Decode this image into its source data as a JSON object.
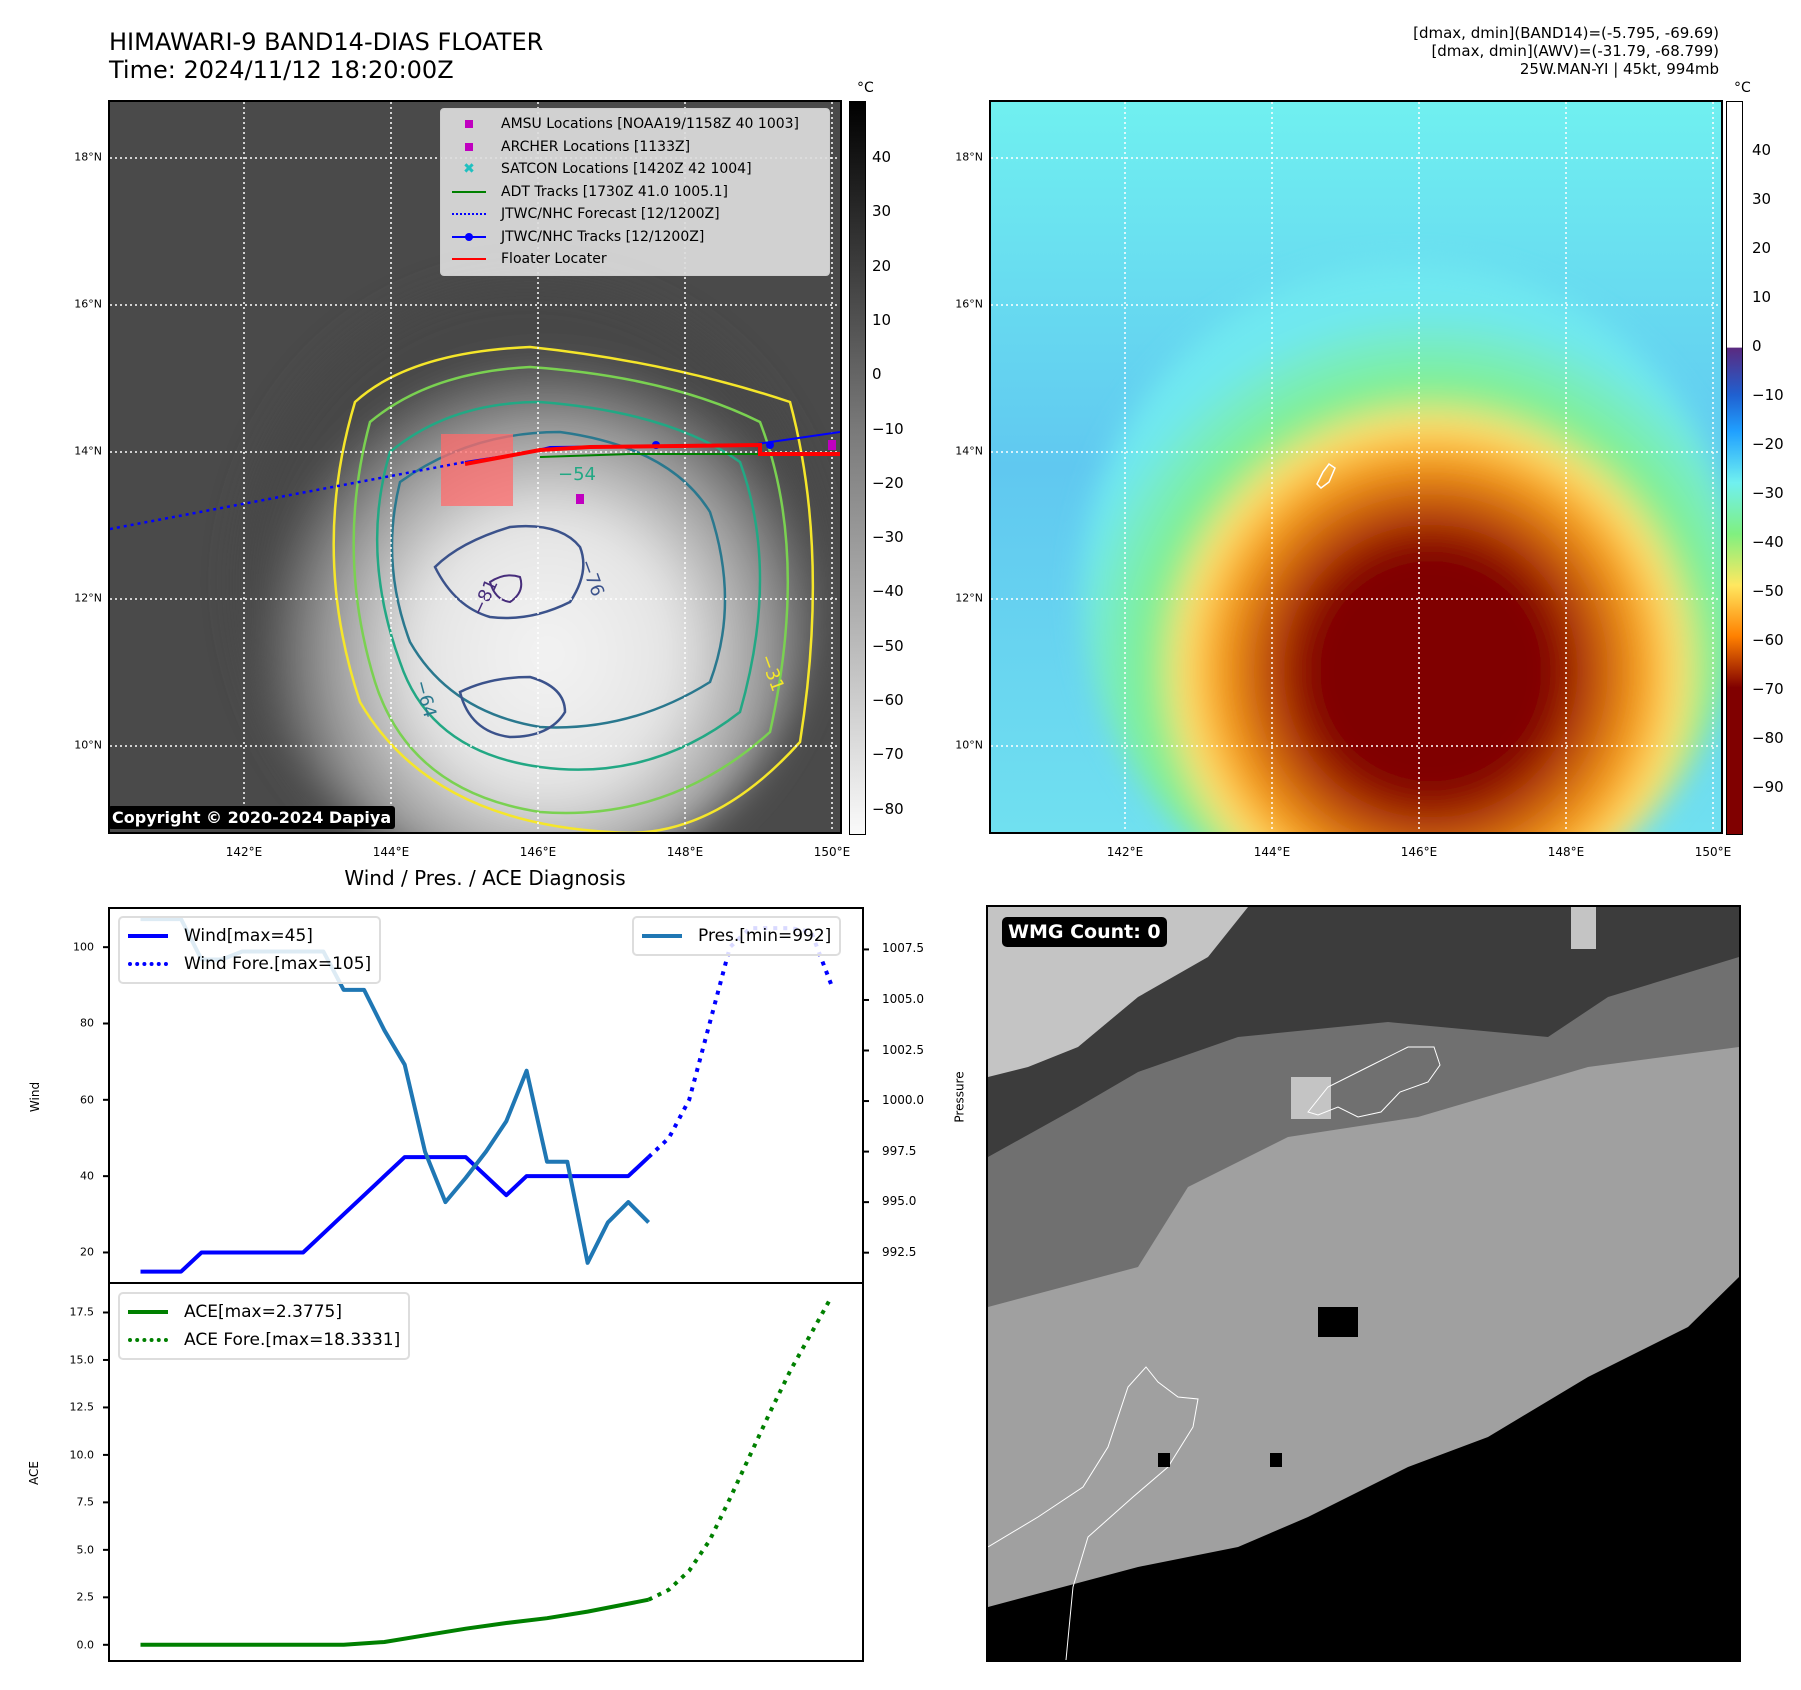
{
  "header": {
    "title_line1": "HIMAWARI-9 BAND14-DIAS FLOATER",
    "title_line2": "Time: 2024/11/12 18:20:00Z",
    "info_line1": "[dmax, dmin](BAND14)=(-5.795, -69.69)",
    "info_line2": "[dmax, dmin](AWV)=(-31.79, -68.799)",
    "info_line3": "25W.MAN-YI | 45kt, 994mb"
  },
  "map_axes": {
    "lat_ticks": [
      "18°N",
      "16°N",
      "14°N",
      "12°N",
      "10°N"
    ],
    "lon_ticks": [
      "142°E",
      "144°E",
      "146°E",
      "148°E",
      "150°E"
    ]
  },
  "ir_panel": {
    "colorbar_unit": "°C",
    "colorbar_ticks": [
      "40",
      "30",
      "20",
      "10",
      "0",
      "−10",
      "−20",
      "−30",
      "−40",
      "−50",
      "−60",
      "−70",
      "−80"
    ],
    "contour_labels": [
      "−54",
      "−64",
      "−76",
      "−81",
      "−31"
    ],
    "copyright": "Copyright © 2020-2024 Dapiya",
    "legend": [
      {
        "label": "AMSU Locations [NOAA19/1158Z 40 1003]",
        "icon": "square-marker",
        "color": "#c000c0"
      },
      {
        "label": "ARCHER Locations [1133Z]",
        "icon": "square-marker",
        "color": "#c000c0"
      },
      {
        "label": "SATCON Locations [1420Z 42 1004]",
        "icon": "x-marker",
        "color": "#20c0c0"
      },
      {
        "label": "ADT Tracks [1730Z 41.0 1005.1]",
        "icon": "solid-line",
        "color": "#008000"
      },
      {
        "label": "JTWC/NHC Forecast [12/1200Z]",
        "icon": "dotted-line",
        "color": "#0000ff"
      },
      {
        "label": "JTWC/NHC Tracks [12/1200Z]",
        "icon": "line-dot",
        "color": "#0000ff"
      },
      {
        "label": "Floater Locater",
        "icon": "solid-line",
        "color": "#ff0000"
      }
    ]
  },
  "awv_panel": {
    "colorbar_unit": "°C",
    "colorbar_ticks": [
      "40",
      "30",
      "20",
      "10",
      "0",
      "−10",
      "−20",
      "−30",
      "−40",
      "−50",
      "−60",
      "−70",
      "−80",
      "−90"
    ]
  },
  "wmg_panel": {
    "badge": "WMG Count: 0"
  },
  "chart_data": [
    {
      "type": "line",
      "title": "Wind / Pres. / ACE Diagnosis",
      "ylabel": "Wind",
      "ylabel_right": "Pressure",
      "ylim": [
        12,
        110
      ],
      "ylim_right": [
        991,
        1009.5
      ],
      "yticks": [
        "100",
        "80",
        "60",
        "40",
        "20"
      ],
      "yticks_right": [
        "1007.5",
        "1005.0",
        "1002.5",
        "1000.0",
        "997.5",
        "995.0",
        "992.5"
      ],
      "x_count": 35,
      "series": [
        {
          "name": "Wind[max=45]",
          "style": "solid",
          "color": "#0000ff",
          "axis": "left",
          "x": [
            0,
            1,
            2,
            3,
            4,
            5,
            6,
            7,
            8,
            9,
            10,
            11,
            12,
            13,
            14,
            15,
            16,
            17,
            18,
            19,
            20,
            21,
            22,
            23,
            24,
            25
          ],
          "values": [
            15,
            15,
            15,
            20,
            20,
            20,
            20,
            20,
            20,
            25,
            30,
            35,
            40,
            45,
            45,
            45,
            45,
            40,
            35,
            40,
            40,
            40,
            40,
            40,
            40,
            45
          ]
        },
        {
          "name": "Wind Fore.[max=105]",
          "style": "dotted",
          "color": "#0000ff",
          "axis": "left",
          "x": [
            25,
            26,
            27,
            28,
            29,
            30,
            31,
            32,
            33,
            34
          ],
          "values": [
            45,
            50,
            60,
            80,
            100,
            105,
            105,
            105,
            104,
            90
          ]
        },
        {
          "name": "Pres.[min=992]",
          "style": "solid",
          "color": "#1f77b4",
          "axis": "right",
          "x": [
            0,
            1,
            2,
            3,
            4,
            5,
            6,
            7,
            8,
            9,
            10,
            11,
            12,
            13,
            14,
            15,
            16,
            17,
            18,
            19,
            20,
            21,
            22,
            23,
            24,
            25
          ],
          "values": [
            1009,
            1009,
            1009,
            1007,
            1007,
            1007.4,
            1007.4,
            1007.4,
            1007.4,
            1007.4,
            1005.5,
            1005.5,
            1003.5,
            1001.8,
            997.5,
            995,
            996.2,
            997.5,
            999,
            1001.5,
            997,
            997,
            992,
            994,
            995,
            994
          ]
        }
      ]
    },
    {
      "type": "line",
      "ylabel": "ACE",
      "ylim": [
        -0.8,
        19
      ],
      "yticks": [
        "17.5",
        "15.0",
        "12.5",
        "10.0",
        "7.5",
        "5.0",
        "2.5",
        "0.0"
      ],
      "x_count": 35,
      "series": [
        {
          "name": "ACE[max=2.3775]",
          "style": "solid",
          "color": "#008000",
          "x": [
            0,
            4,
            8,
            10,
            12,
            14,
            16,
            18,
            20,
            22,
            25
          ],
          "values": [
            0,
            0,
            0,
            0,
            0.15,
            0.5,
            0.85,
            1.15,
            1.4,
            1.75,
            2.3775
          ]
        },
        {
          "name": "ACE Fore.[max=18.3331]",
          "style": "dotted",
          "color": "#008000",
          "x": [
            25,
            26,
            27,
            28,
            29,
            30,
            31,
            32,
            33,
            34
          ],
          "values": [
            2.3775,
            2.9,
            3.9,
            5.5,
            7.7,
            10.0,
            12.3,
            14.5,
            16.4,
            18.3331
          ]
        }
      ]
    }
  ]
}
